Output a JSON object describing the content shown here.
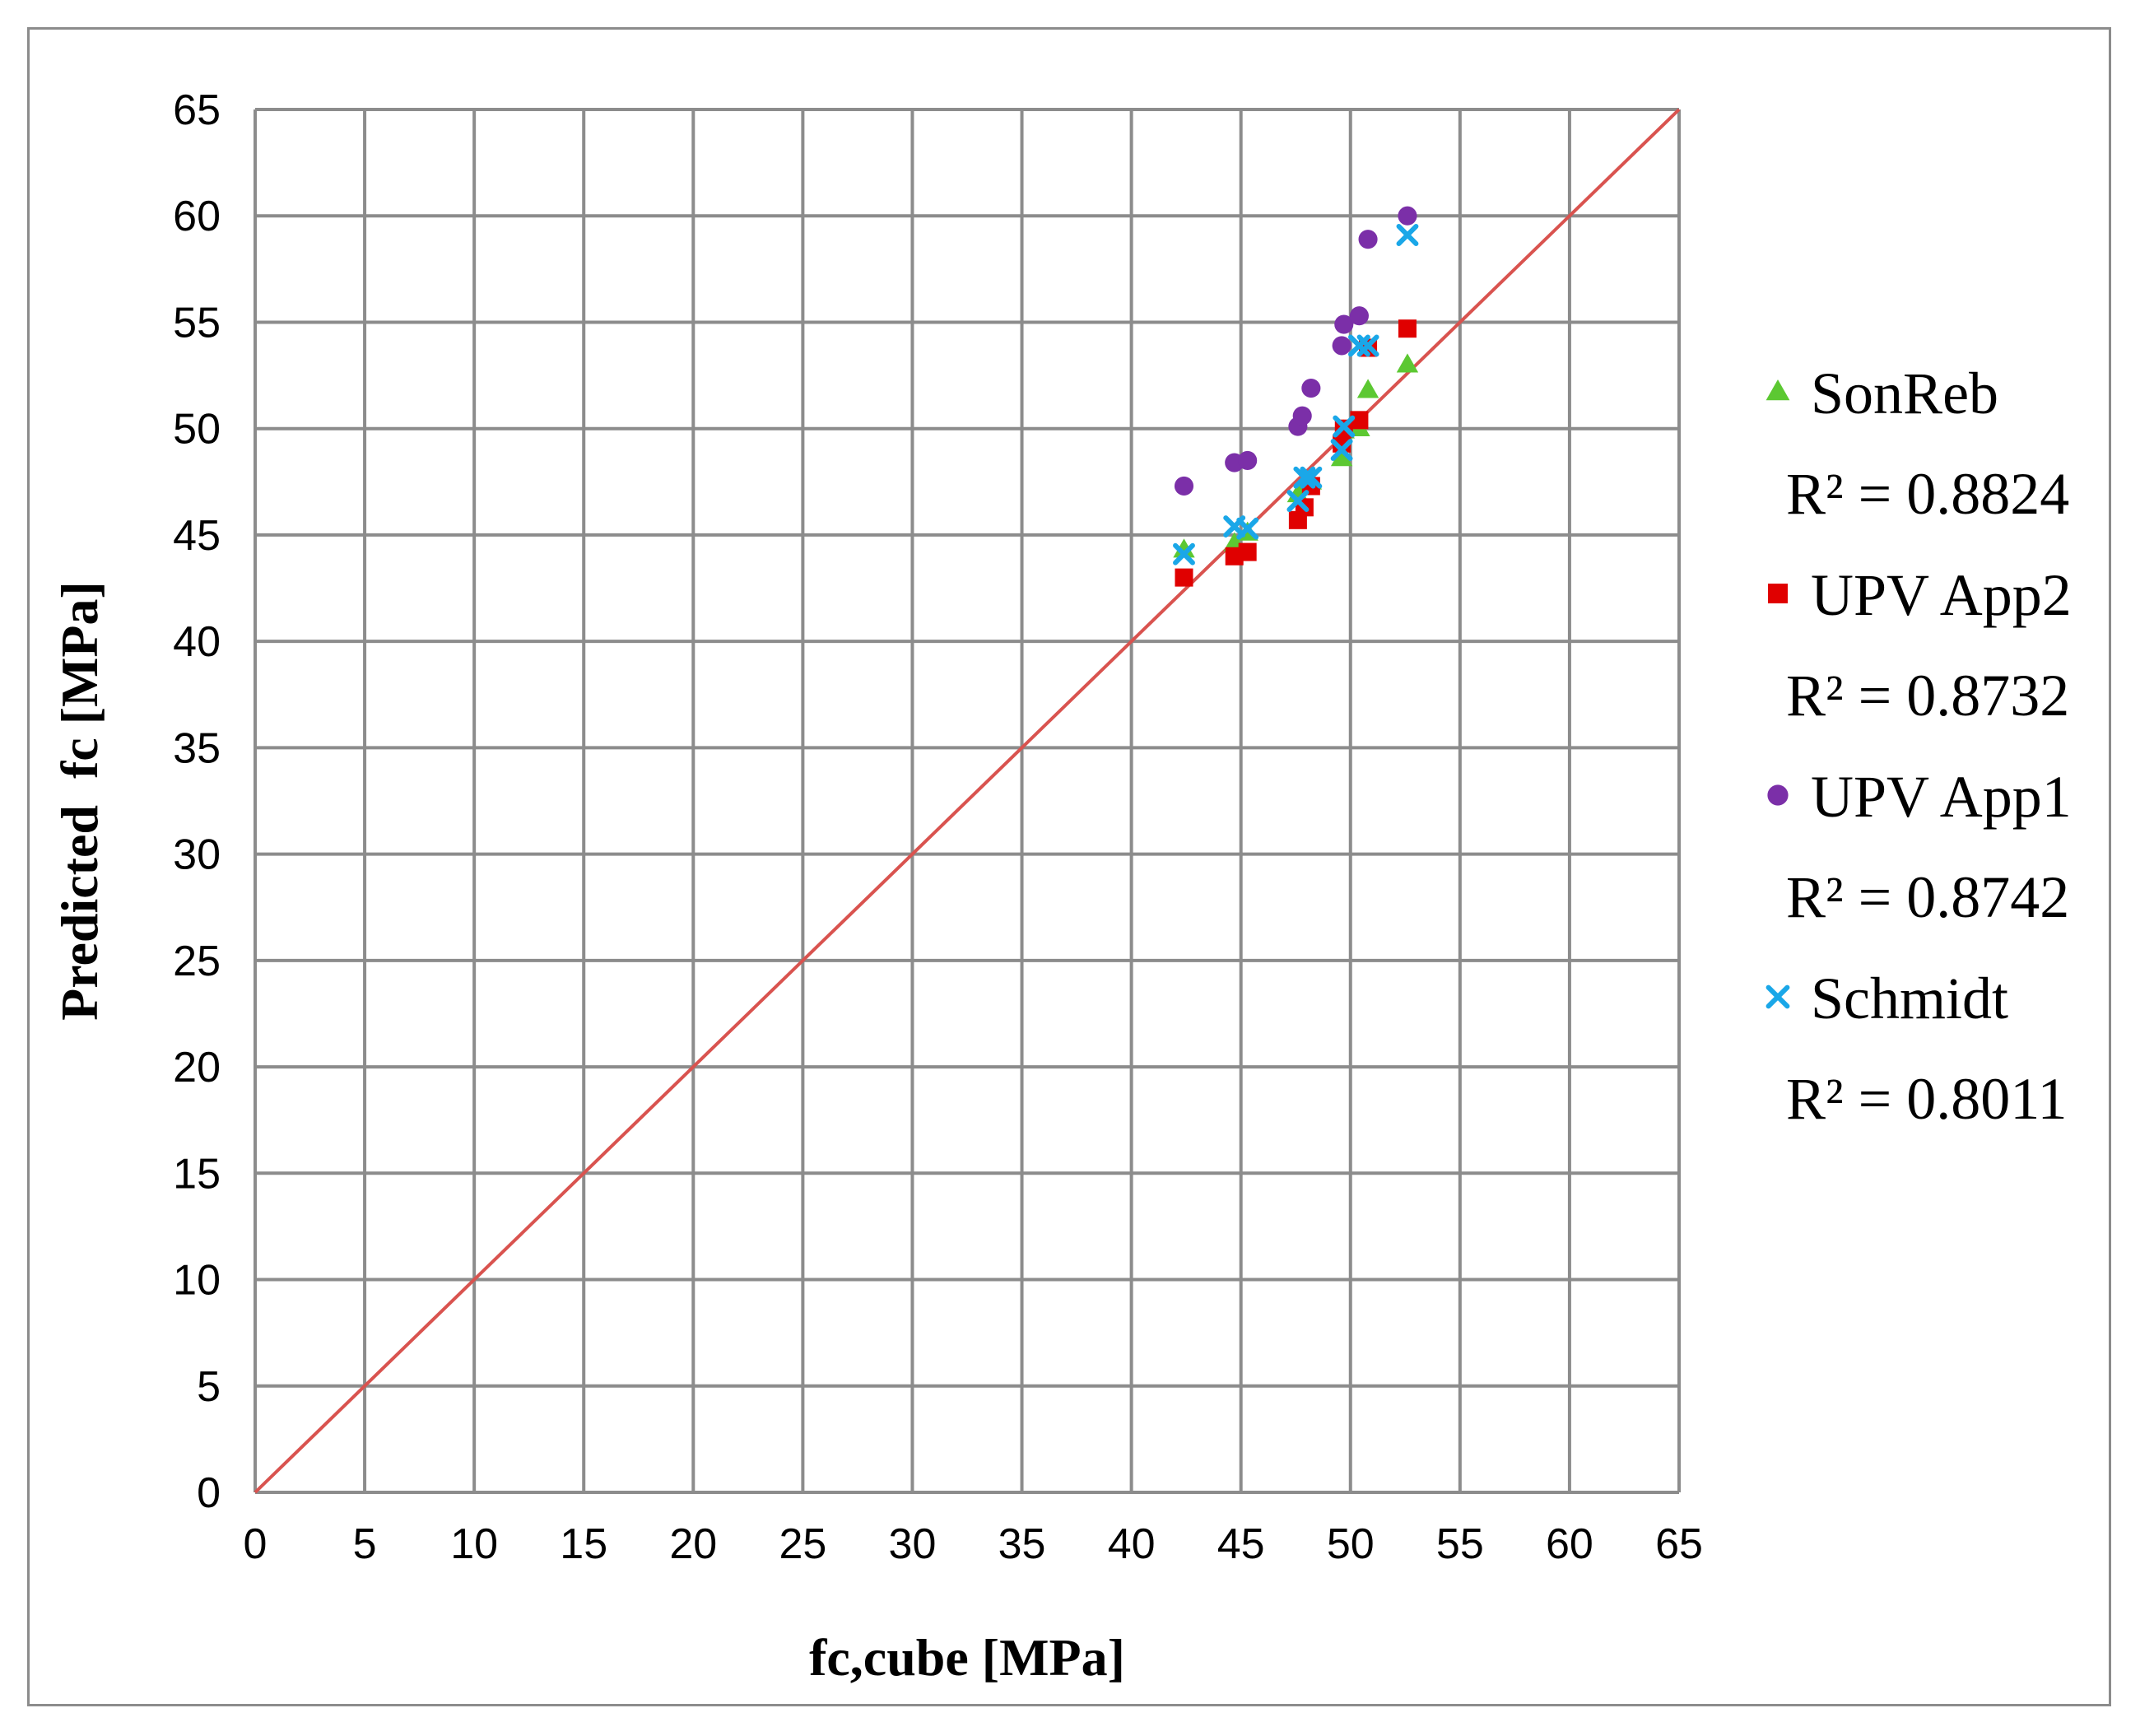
{
  "chart_data": {
    "type": "scatter",
    "title": "",
    "xlabel": "fc,cube [MPa]",
    "ylabel": "Predicted  fc [MPa]",
    "xlim": [
      0,
      65
    ],
    "ylim": [
      0,
      65
    ],
    "xticks": [
      "0",
      "5",
      "10",
      "15",
      "20",
      "25",
      "30",
      "35",
      "40",
      "45",
      "50",
      "55",
      "60",
      "65"
    ],
    "yticks": [
      "0",
      "5",
      "10",
      "15",
      "20",
      "25",
      "30",
      "35",
      "40",
      "45",
      "50",
      "55",
      "60",
      "65"
    ],
    "grid": true,
    "legend_position": "right",
    "reference_line": {
      "name": "y = x",
      "from": [
        0,
        0
      ],
      "to": [
        65,
        65
      ],
      "color": "#d9534f"
    },
    "series": [
      {
        "name": "SonReb",
        "r2_label": "R² = 0.8824",
        "marker": "triangle",
        "color": "#5cc832",
        "points": [
          [
            42.4,
            44.3
          ],
          [
            44.7,
            44.6
          ],
          [
            45.3,
            45.1
          ],
          [
            47.6,
            46.9
          ],
          [
            48.0,
            47.4
          ],
          [
            48.2,
            47.5
          ],
          [
            49.6,
            48.6
          ],
          [
            49.7,
            49.9
          ],
          [
            50.4,
            50.0
          ],
          [
            50.8,
            51.8
          ],
          [
            52.6,
            53.0
          ]
        ]
      },
      {
        "name": "UPV App2",
        "r2_label": "R² = 0.8732",
        "marker": "square",
        "color": "#e00000",
        "points": [
          [
            42.4,
            43.0
          ],
          [
            44.7,
            44.0
          ],
          [
            45.3,
            44.2
          ],
          [
            47.6,
            45.7
          ],
          [
            47.9,
            46.3
          ],
          [
            48.2,
            47.3
          ],
          [
            49.6,
            49.3
          ],
          [
            49.7,
            50.0
          ],
          [
            50.4,
            50.4
          ],
          [
            50.8,
            53.8
          ],
          [
            52.6,
            54.7
          ]
        ]
      },
      {
        "name": "UPV App1",
        "r2_label": "R² = 0.8742",
        "marker": "circle",
        "color": "#7b2fa8",
        "points": [
          [
            42.4,
            47.3
          ],
          [
            44.7,
            48.4
          ],
          [
            45.3,
            48.5
          ],
          [
            47.6,
            50.1
          ],
          [
            47.8,
            50.6
          ],
          [
            48.2,
            51.9
          ],
          [
            49.6,
            53.9
          ],
          [
            49.7,
            54.9
          ],
          [
            50.4,
            55.3
          ],
          [
            50.8,
            58.9
          ],
          [
            52.6,
            60.0
          ]
        ]
      },
      {
        "name": "Schmidt",
        "r2_label": "R² = 0.8011",
        "marker": "x",
        "color": "#1aa7e8",
        "points": [
          [
            42.4,
            44.1
          ],
          [
            44.7,
            45.4
          ],
          [
            45.3,
            45.3
          ],
          [
            47.6,
            46.6
          ],
          [
            47.9,
            47.7
          ],
          [
            48.2,
            47.7
          ],
          [
            49.6,
            49.0
          ],
          [
            49.7,
            50.1
          ],
          [
            50.4,
            53.9
          ],
          [
            50.8,
            53.9
          ],
          [
            52.6,
            59.1
          ]
        ]
      }
    ]
  }
}
